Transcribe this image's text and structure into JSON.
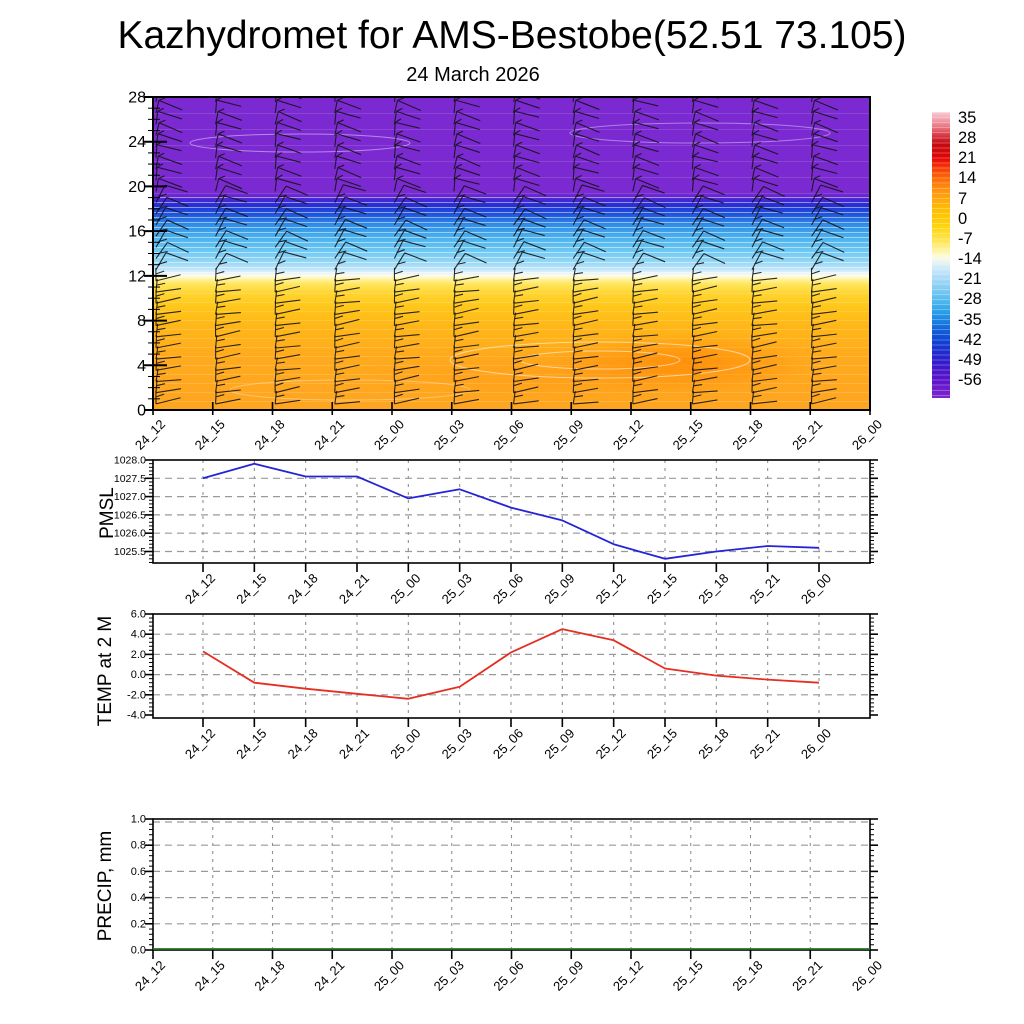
{
  "header": {
    "title": "Kazhydromet for AMS-Bestobe(52.51 73.105)",
    "subtitle": "24 March 2026"
  },
  "time_labels": [
    "24_12",
    "24_15",
    "24_18",
    "24_21",
    "25_00",
    "25_03",
    "25_06",
    "25_09",
    "25_12",
    "25_15",
    "25_18",
    "25_21",
    "26_00"
  ],
  "chart_data": [
    {
      "type": "heatmap",
      "name": "vertical-cross-section",
      "title": "24 March 2026",
      "description": "Time-height cross-section of temperature (shaded, deg C) with wind barbs overlaid",
      "categories": [
        "24_12",
        "24_15",
        "24_18",
        "24_21",
        "25_00",
        "25_03",
        "25_06",
        "25_09",
        "25_12",
        "25_15",
        "25_18",
        "25_21",
        "26_00"
      ],
      "y_ticks": [
        "0",
        "4",
        "8",
        "12",
        "16",
        "20",
        "24",
        "28"
      ],
      "ylim": [
        0,
        28
      ],
      "grid": false,
      "wind_barbs": true,
      "profile_stops": [
        [
          28.0,
          "#7b2ad2"
        ],
        [
          19.4,
          "#7b2ad2"
        ],
        [
          18.8,
          "#4527d2"
        ],
        [
          18.3,
          "#2430d5"
        ],
        [
          17.5,
          "#1e55dd"
        ],
        [
          16.6,
          "#2f8ce8"
        ],
        [
          15.5,
          "#49b0ee"
        ],
        [
          14.4,
          "#68c5f2"
        ],
        [
          13.3,
          "#92d6f6"
        ],
        [
          12.6,
          "#bfe6fa"
        ],
        [
          12.25,
          "#e8f4fc"
        ],
        [
          12.0,
          "#fdfce9"
        ],
        [
          11.7,
          "#fff3a0"
        ],
        [
          11.2,
          "#ffe458"
        ],
        [
          10.4,
          "#ffd430"
        ],
        [
          9.2,
          "#ffc61a"
        ],
        [
          7.5,
          "#ffb718"
        ],
        [
          5.0,
          "#ffab1d"
        ],
        [
          0.0,
          "#ffa521"
        ]
      ],
      "colorbar": {
        "levels": [
          "35",
          "28",
          "21",
          "14",
          "7",
          "0",
          "-7",
          "-14",
          "-21",
          "-28",
          "-35",
          "-42",
          "-49",
          "-56"
        ],
        "value_range": [
          37,
          -62
        ],
        "gradient": [
          [
            37,
            "#f8cdd6"
          ],
          [
            35,
            "#f3abb6"
          ],
          [
            31.5,
            "#e7717c"
          ],
          [
            28,
            "#d02832"
          ],
          [
            26,
            "#c40b10"
          ],
          [
            22,
            "#d80707"
          ],
          [
            21,
            "#e60505"
          ],
          [
            17.5,
            "#f63d08"
          ],
          [
            14,
            "#fe6a06"
          ],
          [
            10.5,
            "#ff8f10"
          ],
          [
            7,
            "#ffa70d"
          ],
          [
            3.5,
            "#ffbc05"
          ],
          [
            0,
            "#ffca06"
          ],
          [
            -3.5,
            "#ffd818"
          ],
          [
            -7,
            "#ffe34a"
          ],
          [
            -10.5,
            "#fdf296"
          ],
          [
            -13,
            "#fcfbd8"
          ],
          [
            -14,
            "#f3f8ef"
          ],
          [
            -17.5,
            "#c9e7fa"
          ],
          [
            -21,
            "#a5d8f6"
          ],
          [
            -24.5,
            "#7ecbf2"
          ],
          [
            -28,
            "#55bbee"
          ],
          [
            -31.5,
            "#30a4ea"
          ],
          [
            -35,
            "#1b86e2"
          ],
          [
            -38.5,
            "#145fd9"
          ],
          [
            -42,
            "#0d46d3"
          ],
          [
            -45.5,
            "#1b2ed0"
          ],
          [
            -49,
            "#2d1ecb"
          ],
          [
            -52.5,
            "#4816cb"
          ],
          [
            -56,
            "#5c13cb"
          ],
          [
            -58,
            "#6b1acc"
          ],
          [
            -62,
            "#7d26cd"
          ]
        ]
      }
    },
    {
      "type": "line",
      "name": "PMSL",
      "color": "#2525d8",
      "categories": [
        "24_12",
        "24_15",
        "24_18",
        "24_21",
        "25_00",
        "25_03",
        "25_06",
        "25_09",
        "25_12",
        "25_15",
        "25_18",
        "25_21",
        "26_00"
      ],
      "values": [
        1027.5,
        1027.9,
        1027.55,
        1027.55,
        1026.95,
        1027.2,
        1026.7,
        1026.35,
        1025.7,
        1025.3,
        1025.5,
        1025.65,
        1025.6
      ],
      "y_ticks": [
        "1028.0",
        "1027.5",
        "1027.0",
        "1026.5",
        "1026.0",
        "1025.5"
      ],
      "ylim": [
        1025.2,
        1028.0
      ],
      "grid": true
    },
    {
      "type": "line",
      "name": "TEMP at 2 M",
      "color": "#e62e22",
      "categories": [
        "24_12",
        "24_15",
        "24_18",
        "24_21",
        "25_00",
        "25_03",
        "25_06",
        "25_09",
        "25_12",
        "25_15",
        "25_18",
        "25_21",
        "26_00"
      ],
      "values": [
        2.3,
        -0.8,
        -1.4,
        -1.9,
        -2.4,
        -1.2,
        2.2,
        4.5,
        3.4,
        0.6,
        -0.1,
        -0.5,
        -0.8
      ],
      "y_ticks": [
        "6.0",
        "4.0",
        "2.0",
        "0.0",
        "-2.0",
        "-4.0"
      ],
      "ylim": [
        -4.4,
        6.0
      ],
      "grid": true
    },
    {
      "type": "line",
      "name": "PRECIP, mm",
      "color": "#267326",
      "categories": [
        "24_12",
        "24_15",
        "24_18",
        "24_21",
        "25_00",
        "25_03",
        "25_06",
        "25_09",
        "25_12",
        "25_15",
        "25_18",
        "25_21",
        "26_00"
      ],
      "values": [
        0,
        0,
        0,
        0,
        0,
        0,
        0,
        0,
        0,
        0,
        0,
        0,
        0
      ],
      "y_ticks": [
        "1.0",
        "0.8",
        "0.6",
        "0.4",
        "0.2",
        "0.0"
      ],
      "ylim": [
        0.0,
        1.0
      ],
      "grid": true
    }
  ]
}
